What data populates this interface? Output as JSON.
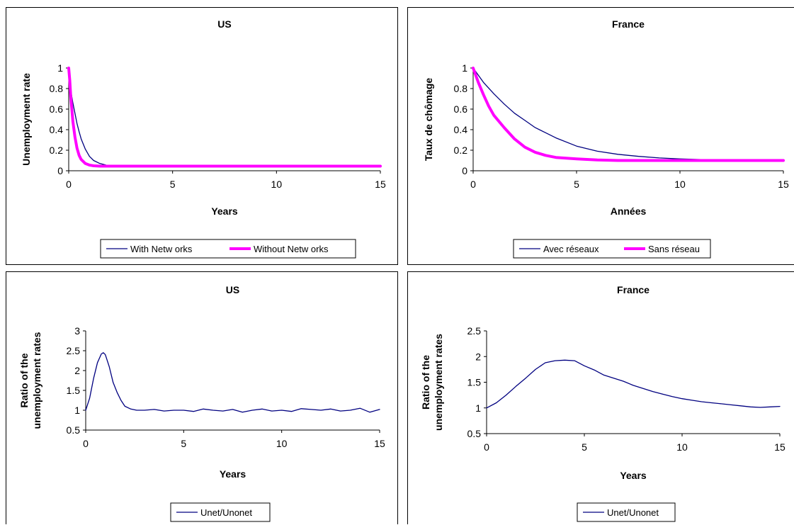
{
  "chart_data": [
    {
      "type": "line",
      "title": "US",
      "xlabel": "Years",
      "ylabel": "Unemployment rate",
      "xlim": [
        0,
        15
      ],
      "ylim": [
        0,
        1
      ],
      "xticks": [
        0,
        5,
        10,
        15
      ],
      "yticks": [
        0,
        0.2,
        0.4,
        0.6,
        0.8,
        1
      ],
      "ytick_labels": [
        "0",
        "0.2",
        "0.4",
        "0.6",
        "0.8",
        "1"
      ],
      "legend_position": "bottom",
      "series": [
        {
          "name": "With Netw orks",
          "color": "#000080",
          "width": "thin",
          "x": [
            0,
            0.1,
            0.2,
            0.3,
            0.4,
            0.5,
            0.6,
            0.8,
            1.0,
            1.2,
            1.5,
            1.8,
            2.2,
            3,
            5,
            8,
            10,
            12,
            15
          ],
          "y": [
            1.0,
            0.78,
            0.66,
            0.56,
            0.46,
            0.38,
            0.31,
            0.21,
            0.14,
            0.1,
            0.07,
            0.055,
            0.048,
            0.045,
            0.045,
            0.045,
            0.045,
            0.045,
            0.045
          ]
        },
        {
          "name": "Without Netw orks",
          "color": "#ff00ff",
          "width": "thick",
          "x": [
            0,
            0.05,
            0.1,
            0.2,
            0.3,
            0.4,
            0.5,
            0.6,
            0.8,
            1.0,
            1.2,
            1.5,
            2,
            3,
            5,
            8,
            10,
            12,
            15
          ],
          "y": [
            1.0,
            0.88,
            0.72,
            0.48,
            0.33,
            0.22,
            0.15,
            0.11,
            0.07,
            0.055,
            0.048,
            0.045,
            0.045,
            0.045,
            0.045,
            0.045,
            0.045,
            0.045,
            0.045
          ]
        }
      ]
    },
    {
      "type": "line",
      "title": "France",
      "xlabel": "Années",
      "ylabel": "Taux de chômage",
      "xlim": [
        0,
        15
      ],
      "ylim": [
        0,
        1
      ],
      "xticks": [
        0,
        5,
        10,
        15
      ],
      "yticks": [
        0,
        0.2,
        0.4,
        0.6,
        0.8,
        1
      ],
      "ytick_labels": [
        "0",
        "0.2",
        "0.4",
        "0.6",
        "0.8",
        "1"
      ],
      "legend_position": "bottom",
      "series": [
        {
          "name": "Avec réseaux",
          "color": "#000080",
          "width": "thin",
          "x": [
            0,
            0.5,
            1,
            1.5,
            2,
            2.5,
            3,
            3.5,
            4,
            5,
            6,
            7,
            8,
            9,
            10,
            11,
            12,
            13,
            14,
            15
          ],
          "y": [
            1.0,
            0.86,
            0.75,
            0.65,
            0.56,
            0.49,
            0.42,
            0.37,
            0.32,
            0.24,
            0.19,
            0.16,
            0.14,
            0.125,
            0.115,
            0.11,
            0.105,
            0.1,
            0.1,
            0.1
          ]
        },
        {
          "name": "Sans réseau",
          "color": "#ff00ff",
          "width": "thick",
          "x": [
            0,
            0.25,
            0.5,
            0.75,
            1,
            1.5,
            2,
            2.5,
            3,
            3.5,
            4,
            5,
            6,
            7,
            8,
            9,
            10,
            11,
            12,
            13,
            14,
            15
          ],
          "y": [
            1.0,
            0.86,
            0.74,
            0.63,
            0.54,
            0.42,
            0.31,
            0.23,
            0.18,
            0.15,
            0.13,
            0.115,
            0.105,
            0.1,
            0.1,
            0.1,
            0.1,
            0.1,
            0.1,
            0.1,
            0.1,
            0.1
          ]
        }
      ]
    },
    {
      "type": "line",
      "title": "US",
      "xlabel": "Years",
      "ylabel": "Ratio of the unemployment rates",
      "ylabel_lines": [
        "Ratio of the",
        "unemployment rates"
      ],
      "xlim": [
        0,
        15
      ],
      "ylim": [
        0.5,
        3
      ],
      "xticks": [
        0,
        5,
        10,
        15
      ],
      "yticks": [
        0.5,
        1,
        1.5,
        2,
        2.5,
        3
      ],
      "ytick_labels": [
        "0.5",
        "1",
        "1.5",
        "2",
        "2.5",
        "3"
      ],
      "legend_position": "bottom",
      "series": [
        {
          "name": "Unet/Unonet",
          "color": "#000080",
          "width": "thin",
          "x": [
            0,
            0.2,
            0.4,
            0.6,
            0.8,
            0.9,
            1.0,
            1.2,
            1.4,
            1.6,
            1.8,
            2.0,
            2.3,
            2.6,
            3,
            3.5,
            4,
            4.5,
            5,
            5.5,
            6,
            6.5,
            7,
            7.5,
            8,
            8.5,
            9,
            9.5,
            10,
            10.5,
            11,
            11.5,
            12,
            12.5,
            13,
            13.5,
            14,
            14.5,
            15
          ],
          "y": [
            1.0,
            1.3,
            1.8,
            2.2,
            2.42,
            2.45,
            2.4,
            2.1,
            1.7,
            1.45,
            1.25,
            1.1,
            1.03,
            1.0,
            1.0,
            1.02,
            0.98,
            1.0,
            1.0,
            0.97,
            1.03,
            1.0,
            0.98,
            1.02,
            0.95,
            1.0,
            1.03,
            0.98,
            1.0,
            0.97,
            1.04,
            1.02,
            1.0,
            1.03,
            0.98,
            1.0,
            1.05,
            0.95,
            1.02
          ]
        }
      ]
    },
    {
      "type": "line",
      "title": "France",
      "xlabel": "Years",
      "ylabel": "Ratio of the unemployment rates",
      "ylabel_lines": [
        "Ratio of the",
        "unemployment rates"
      ],
      "xlim": [
        0,
        15
      ],
      "ylim": [
        0.5,
        2.5
      ],
      "xticks": [
        0,
        5,
        10,
        15
      ],
      "yticks": [
        0.5,
        1,
        1.5,
        2,
        2.5
      ],
      "ytick_labels": [
        "0.5",
        "1",
        "1.5",
        "2",
        "2.5"
      ],
      "legend_position": "bottom",
      "series": [
        {
          "name": "Unet/Unonet",
          "color": "#000080",
          "width": "thin",
          "x": [
            0,
            0.5,
            1,
            1.5,
            2,
            2.5,
            3,
            3.5,
            4,
            4.5,
            5,
            5.5,
            6,
            6.5,
            7,
            7.5,
            8,
            8.5,
            9,
            9.5,
            10,
            10.5,
            11,
            11.5,
            12,
            12.5,
            13,
            13.5,
            14,
            14.5,
            15
          ],
          "y": [
            1.0,
            1.1,
            1.25,
            1.42,
            1.58,
            1.75,
            1.88,
            1.92,
            1.93,
            1.92,
            1.82,
            1.74,
            1.64,
            1.58,
            1.52,
            1.44,
            1.38,
            1.32,
            1.27,
            1.22,
            1.18,
            1.15,
            1.12,
            1.1,
            1.08,
            1.06,
            1.04,
            1.02,
            1.01,
            1.02,
            1.03
          ]
        }
      ]
    }
  ]
}
